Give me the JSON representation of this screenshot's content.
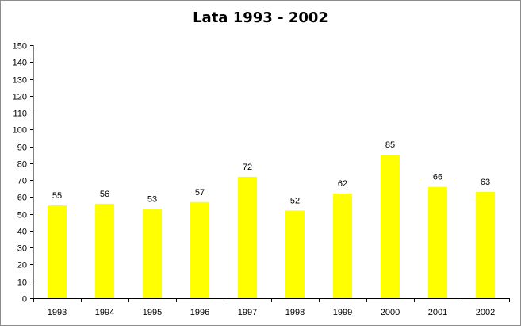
{
  "chart_data": {
    "type": "bar",
    "title": "Lata 1993 - 2002",
    "xlabel": "",
    "ylabel": "",
    "categories": [
      "1993",
      "1994",
      "1995",
      "1996",
      "1997",
      "1998",
      "1999",
      "2000",
      "2001",
      "2002"
    ],
    "values": [
      55,
      56,
      53,
      57,
      72,
      52,
      62,
      85,
      66,
      63
    ],
    "ylim": [
      0,
      150
    ],
    "ytick_step": 10,
    "grid": false,
    "legend": "none",
    "data_labels": true,
    "bar_color": "#ffff00"
  }
}
